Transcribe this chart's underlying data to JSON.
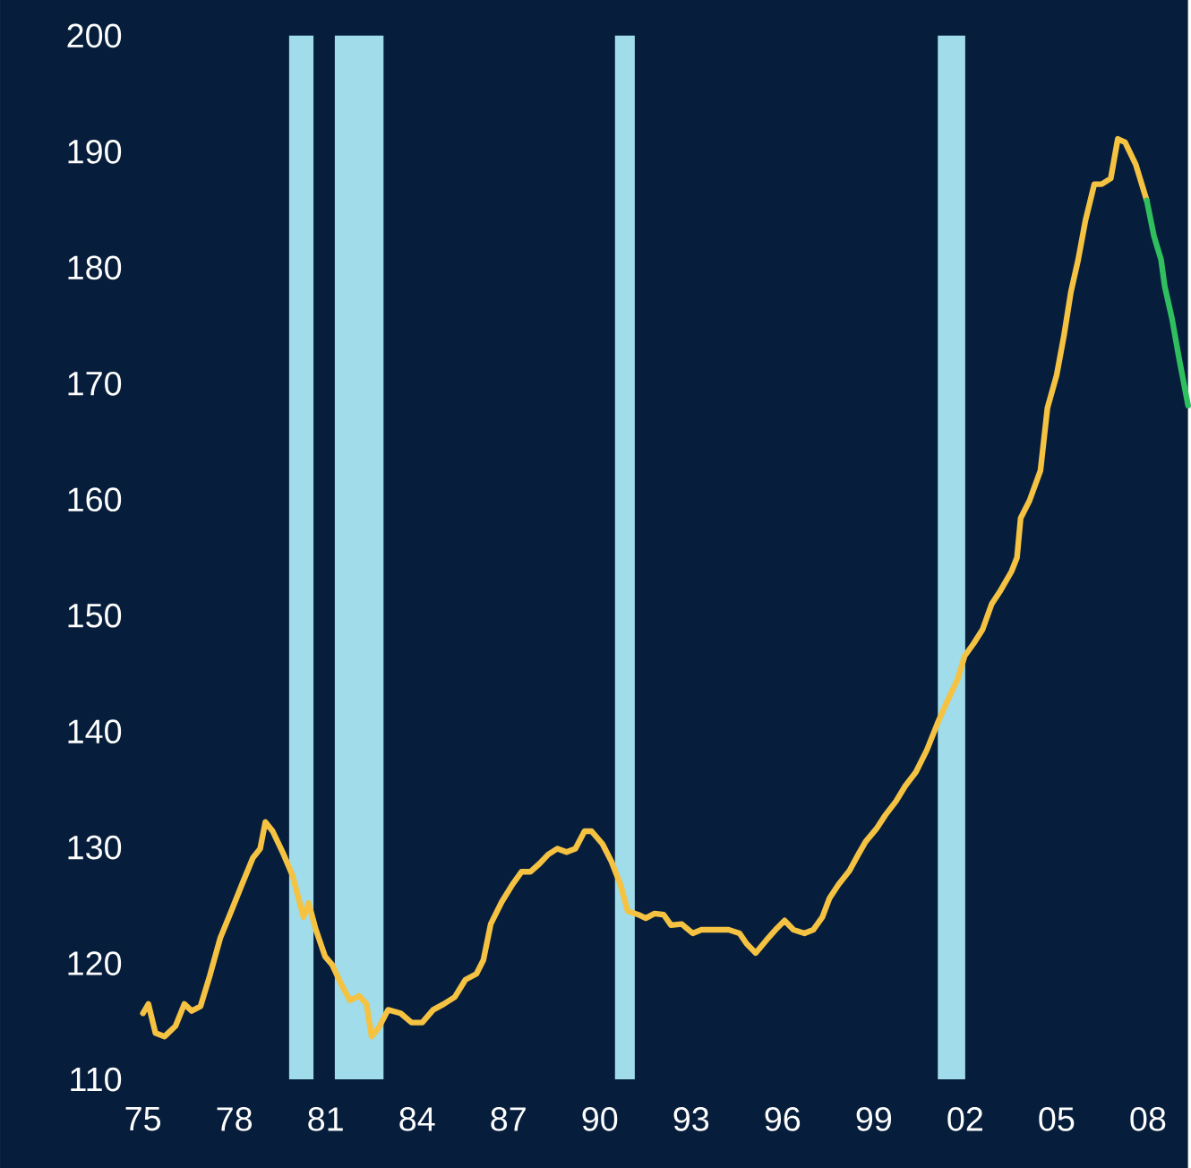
{
  "chart_data": {
    "type": "line",
    "xlim": [
      1975,
      2009.32
    ],
    "ylim": [
      110,
      200
    ],
    "xticks": [
      {
        "value": 1975,
        "label": "75"
      },
      {
        "value": 1978,
        "label": "78"
      },
      {
        "value": 1981,
        "label": "81"
      },
      {
        "value": 1984,
        "label": "84"
      },
      {
        "value": 1987,
        "label": "87"
      },
      {
        "value": 1990,
        "label": "90"
      },
      {
        "value": 1993,
        "label": "93"
      },
      {
        "value": 1996,
        "label": "96"
      },
      {
        "value": 1999,
        "label": "99"
      },
      {
        "value": 2002,
        "label": "02"
      },
      {
        "value": 2005,
        "label": "05"
      },
      {
        "value": 2008,
        "label": "08"
      }
    ],
    "yticks": [
      110,
      120,
      130,
      140,
      150,
      160,
      170,
      180,
      190,
      200
    ],
    "grid": false,
    "marker": "none",
    "line_style": "solid",
    "bands": [
      {
        "axis": "x",
        "from": 1979.8,
        "to": 1980.6,
        "color": "#a0dcea"
      },
      {
        "axis": "x",
        "from": 1981.3,
        "to": 1982.9,
        "color": "#a0dcea"
      },
      {
        "axis": "x",
        "from": 1990.5,
        "to": 1991.15,
        "color": "#a0dcea"
      },
      {
        "axis": "x",
        "from": 2001.1,
        "to": 2002.0,
        "color": "#a0dcea"
      }
    ],
    "series": [
      {
        "color": "#f5c242",
        "x": [
          1975,
          1975.18,
          1975.41,
          1975.71,
          1976.07,
          1976.36,
          1976.6,
          1976.89,
          1977.19,
          1977.54,
          1977.9,
          1978.25,
          1978.61,
          1978.85,
          1979.02,
          1979.26,
          1979.62,
          1979.91,
          1980.27,
          1980.44,
          1980.68,
          1980.98,
          1981.21,
          1981.57,
          1981.8,
          1982.1,
          1982.34,
          1982.51,
          1982.75,
          1983.05,
          1983.46,
          1983.82,
          1984.17,
          1984.53,
          1984.88,
          1985.24,
          1985.59,
          1985.95,
          1986.18,
          1986.42,
          1986.78,
          1987.13,
          1987.43,
          1987.72,
          1988.02,
          1988.31,
          1988.61,
          1988.91,
          1989.2,
          1989.5,
          1989.73,
          1990.09,
          1990.38,
          1990.68,
          1990.92,
          1991.27,
          1991.51,
          1991.8,
          1992.1,
          1992.34,
          1992.69,
          1993.05,
          1993.34,
          1993.64,
          1994.23,
          1994.59,
          1994.82,
          1995.12,
          1995.47,
          1995.77,
          1996.07,
          1996.36,
          1996.72,
          1997.01,
          1997.31,
          1997.54,
          1997.84,
          1998.2,
          1998.49,
          1998.73,
          1999.08,
          1999.38,
          1999.73,
          2000.03,
          2000.38,
          2000.74,
          2001.09,
          2001.39,
          2001.75,
          2001.98,
          2002.28,
          2002.57,
          2002.87,
          2003.17,
          2003.52,
          2003.7,
          2003.82,
          2004.11,
          2004.47,
          2004.7,
          2005.0,
          2005.24,
          2005.47,
          2005.71,
          2005.95,
          2006.24,
          2006.48,
          2006.78,
          2007.01,
          2007.25,
          2007.6,
          2007.96
        ],
        "values": [
          115.7,
          116.5,
          114.0,
          113.7,
          114.6,
          116.5,
          115.9,
          116.3,
          118.9,
          122.2,
          124.5,
          126.8,
          129.1,
          129.9,
          132.2,
          131.4,
          129.4,
          127.6,
          124.0,
          125.2,
          122.9,
          120.6,
          119.9,
          117.9,
          116.8,
          117.2,
          116.5,
          113.7,
          114.5,
          116.0,
          115.7,
          114.9,
          114.9,
          116.0,
          116.5,
          117.1,
          118.6,
          119.1,
          120.3,
          123.4,
          125.3,
          126.8,
          127.9,
          127.9,
          128.6,
          129.4,
          129.9,
          129.6,
          129.9,
          131.4,
          131.4,
          130.3,
          128.8,
          126.8,
          124.5,
          124.2,
          123.9,
          124.3,
          124.2,
          123.3,
          123.4,
          122.6,
          122.9,
          122.9,
          122.9,
          122.6,
          121.7,
          120.9,
          122.0,
          122.9,
          123.7,
          122.9,
          122.6,
          122.9,
          124.0,
          125.6,
          126.8,
          128.0,
          129.4,
          130.5,
          131.6,
          132.8,
          134.0,
          135.3,
          136.5,
          138.4,
          140.7,
          142.5,
          144.5,
          146.5,
          147.6,
          148.8,
          151.0,
          152.2,
          153.8,
          155.0,
          158.4,
          159.9,
          162.5,
          167.9,
          170.7,
          174.1,
          177.9,
          180.7,
          184.1,
          187.2,
          187.2,
          187.7,
          191.1,
          190.8,
          188.9,
          185.8
        ]
      },
      {
        "color": "#2fbf5f",
        "x": [
          2007.96,
          2008.2,
          2008.43,
          2008.55,
          2008.79,
          2009.02,
          2009.32
        ],
        "values": [
          185.8,
          182.7,
          180.7,
          178.4,
          175.6,
          172.2,
          168.1
        ]
      }
    ]
  }
}
